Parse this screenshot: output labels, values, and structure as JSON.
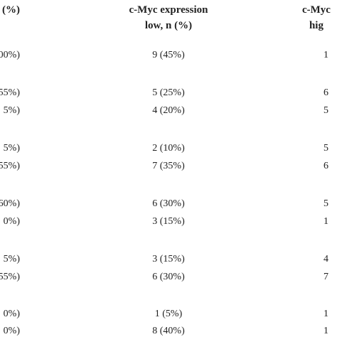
{
  "table": {
    "header": [
      "n (%)",
      "c-Myc expression\nlow, n (%)",
      "c-Myc\nhig"
    ],
    "rows": [
      [
        "00%)",
        "9 (45%)",
        "1"
      ],
      [
        "55%)",
        "5 (25%)",
        "6"
      ],
      [
        "5%)",
        "4 (20%)",
        "5"
      ],
      [
        "5%)",
        "2 (10%)",
        "5"
      ],
      [
        "55%)",
        "7 (35%)",
        "6"
      ],
      [
        "60%)",
        "6 (30%)",
        "5"
      ],
      [
        "0%)",
        "3 (15%)",
        "1"
      ],
      [
        "5%)",
        "3 (15%)",
        "4"
      ],
      [
        "55%)",
        "6 (30%)",
        "7"
      ],
      [
        "0%)",
        "1 (5%)",
        "1"
      ],
      [
        "0%)",
        "8 (40%)",
        "1"
      ]
    ]
  }
}
